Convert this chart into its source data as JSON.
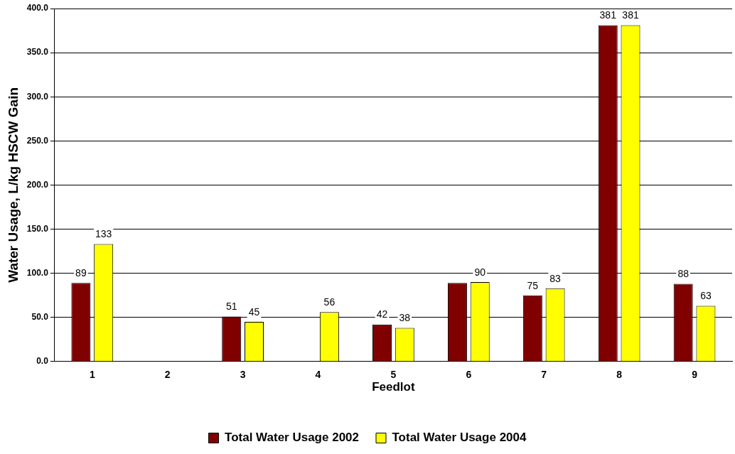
{
  "chart_data": {
    "type": "bar",
    "xlabel": "Feedlot",
    "ylabel": "Water Usage, L/kg HSCW Gain",
    "categories": [
      "1",
      "2",
      "3",
      "4",
      "5",
      "6",
      "7",
      "8",
      "9"
    ],
    "series": [
      {
        "name": "Total Water Usage 2002",
        "color": "#800000",
        "values": [
          89,
          null,
          51,
          null,
          42,
          89,
          75,
          381,
          88
        ],
        "value_labels": [
          "89",
          null,
          "51",
          null,
          "42",
          null,
          "75",
          "381",
          "88"
        ]
      },
      {
        "name": "Total Water Usage 2004",
        "color": "#ffff00",
        "values": [
          133,
          null,
          45,
          56,
          38,
          90,
          83,
          381,
          63
        ],
        "value_labels": [
          "133",
          null,
          "45",
          "56",
          "38",
          "90",
          "83",
          "381",
          "63"
        ]
      }
    ],
    "ylim": [
      0,
      400
    ],
    "yticks": [
      {
        "value": 0,
        "label": "0.0"
      },
      {
        "value": 50,
        "label": "50.0"
      },
      {
        "value": 100,
        "label": "100.0"
      },
      {
        "value": 150,
        "label": "150.0"
      },
      {
        "value": 200,
        "label": "200.0"
      },
      {
        "value": 250,
        "label": "250.0"
      },
      {
        "value": 300,
        "label": "300.0"
      },
      {
        "value": 350,
        "label": "350.0"
      },
      {
        "value": 400,
        "label": "400.0"
      }
    ],
    "grid": "y",
    "legend": "bottom"
  }
}
